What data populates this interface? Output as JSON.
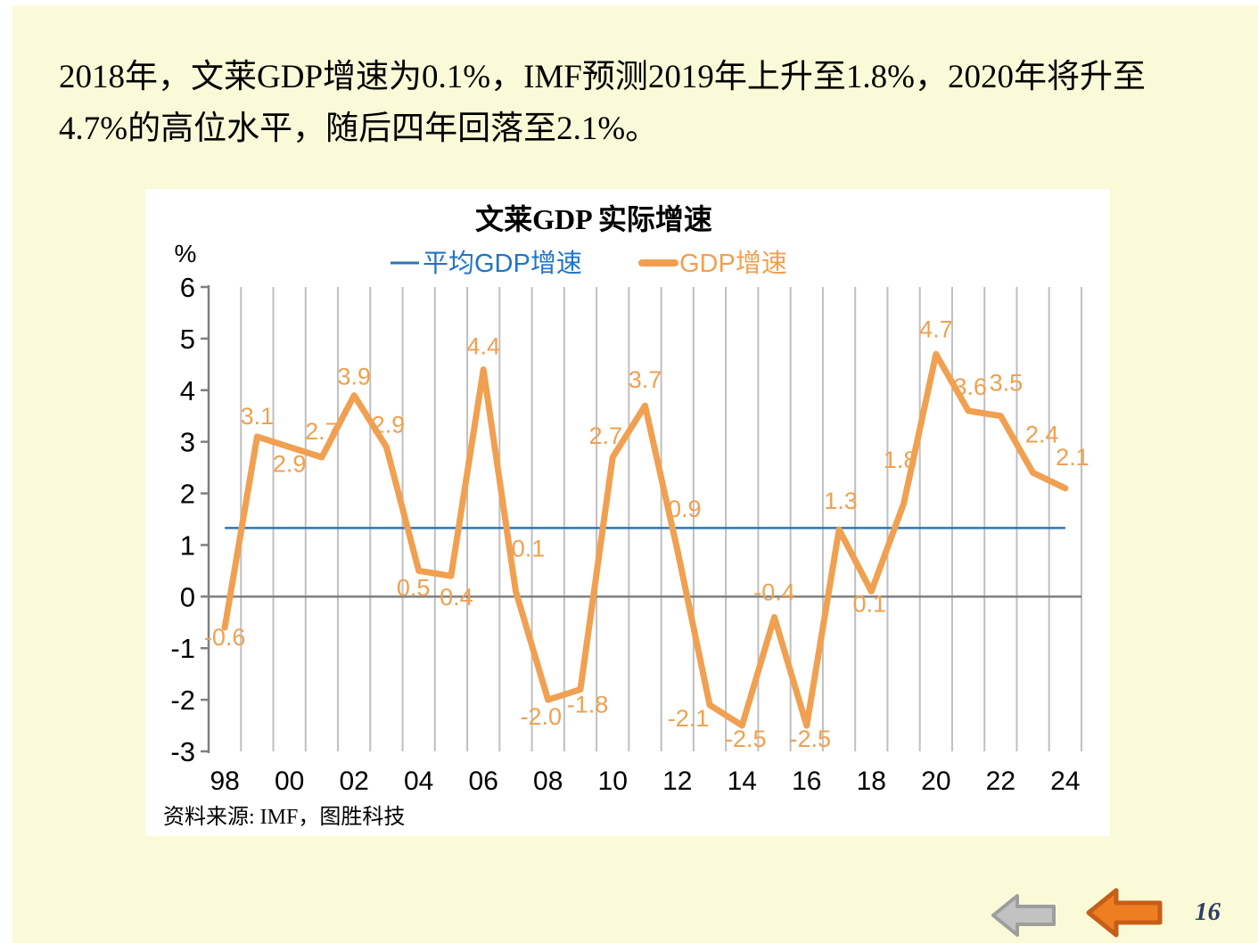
{
  "heading": {
    "line1": "2018年，文莱GDP增速为0.1%，IMF预测2019年上升至1.8%，2020年将升至",
    "line2": "4.7%的高位水平，随后四年回落至2.1%。"
  },
  "chart": {
    "title": "文莱GDP 实际增速",
    "unit_label": "%",
    "legend": {
      "average_label": "平均GDP增速",
      "series_label": "GDP增速"
    },
    "source": "资料来源: IMF，图胜科技",
    "colors": {
      "series_orange": "#F0A050",
      "average_blue": "#2E75B6",
      "axis_gray": "#7F7F7F",
      "grid_gray": "#BFBFBF"
    }
  },
  "chart_data": {
    "type": "line",
    "title": "文莱GDP 实际增速",
    "ylabel": "%",
    "x": [
      1998,
      1999,
      2000,
      2001,
      2002,
      2003,
      2004,
      2005,
      2006,
      2007,
      2008,
      2009,
      2010,
      2011,
      2012,
      2013,
      2014,
      2015,
      2016,
      2017,
      2018,
      2019,
      2020,
      2021,
      2022,
      2023,
      2024
    ],
    "xtick_labels": [
      "98",
      "00",
      "02",
      "04",
      "06",
      "08",
      "10",
      "12",
      "14",
      "16",
      "18",
      "20",
      "22",
      "24"
    ],
    "series": [
      {
        "name": "GDP增速",
        "color": "#F0A050",
        "values": [
          -0.6,
          3.1,
          2.9,
          2.7,
          3.9,
          2.9,
          0.5,
          0.4,
          4.4,
          0.1,
          -2.0,
          -1.8,
          2.7,
          3.7,
          0.9,
          -2.1,
          -2.5,
          -0.4,
          -2.5,
          1.3,
          0.1,
          1.8,
          4.7,
          3.6,
          3.5,
          2.4,
          2.1
        ]
      },
      {
        "name": "平均GDP增速",
        "color": "#2E75B6",
        "type": "constant-line",
        "value": 1.33
      }
    ],
    "ylim": [
      -3,
      6
    ],
    "yticks": [
      6,
      5,
      4,
      3,
      2,
      1,
      0,
      -1,
      -2,
      -3
    ],
    "data_labels_visible": true,
    "legend_position": "top",
    "grid": "vertical-category-gridlines"
  },
  "nav": {
    "prev_icon": "left-arrow-gray",
    "active_icon": "left-arrow-orange"
  },
  "footer": {
    "page_number": "16"
  }
}
